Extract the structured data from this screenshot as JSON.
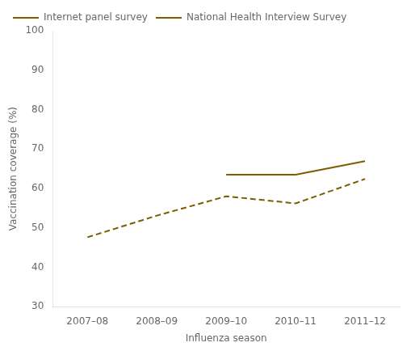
{
  "chart_data": {
    "type": "line",
    "categories": [
      "2007–08",
      "2008–09",
      "2009–10",
      "2010–11",
      "2011–12"
    ],
    "series": [
      {
        "name": "Internet panel survey",
        "color": "#7B5E00",
        "line_style": "solid",
        "values": [
          null,
          null,
          63.5,
          63.5,
          66.9
        ]
      },
      {
        "name": "National Health Interview Survey",
        "color": "#7B5E00",
        "line_style": "dashed",
        "values": [
          47.6,
          53.1,
          58.0,
          56.2,
          62.4
        ]
      }
    ],
    "xlabel": "Influenza season",
    "ylabel": "Vaccination coverage (%)",
    "ylim": [
      30,
      100
    ],
    "yticks": [
      30,
      40,
      50,
      60,
      70,
      80,
      90,
      100
    ],
    "grid": false,
    "legend": "upper left"
  }
}
